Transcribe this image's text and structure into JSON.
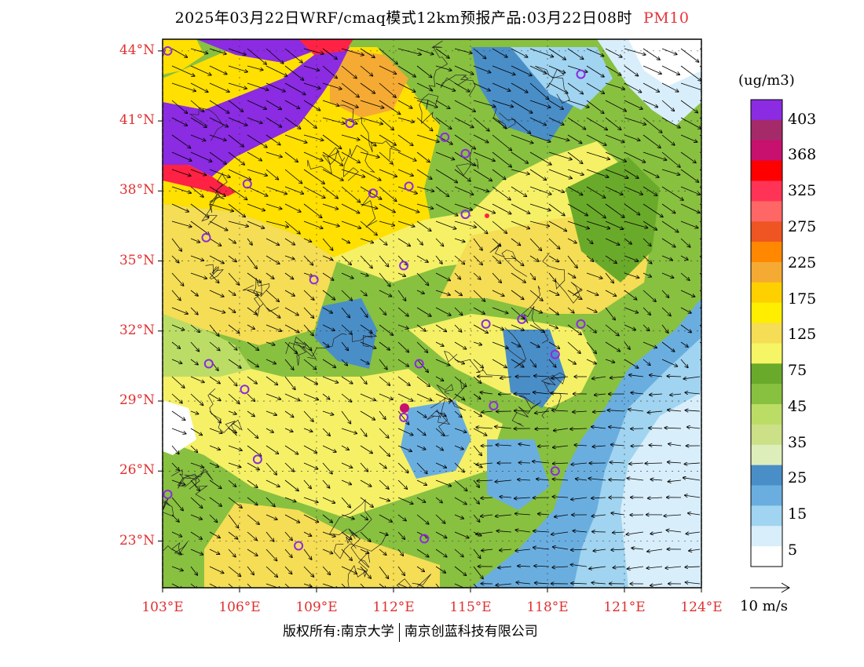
{
  "title": {
    "main": "2025年03月22日WRF/cmaq模式12km预报产品:03月22日08时",
    "variable": "PM10"
  },
  "axes": {
    "lat_labels": [
      "44°N",
      "41°N",
      "38°N",
      "35°N",
      "32°N",
      "29°N",
      "26°N",
      "23°N"
    ],
    "lon_labels": [
      "103°E",
      "106°E",
      "109°E",
      "112°E",
      "115°E",
      "118°E",
      "121°E",
      "124°E"
    ],
    "lat_values": [
      44,
      41,
      38,
      35,
      32,
      29,
      26,
      23
    ],
    "lon_values": [
      103,
      106,
      109,
      112,
      115,
      118,
      121,
      124
    ],
    "lat_range": [
      21,
      44.5
    ],
    "lon_range": [
      103,
      124
    ]
  },
  "colorbar": {
    "unit": "(ug/m3)",
    "labels": [
      "403",
      "368",
      "325",
      "275",
      "225",
      "175",
      "125",
      "75",
      "45",
      "35",
      "25",
      "15",
      "5"
    ],
    "colors": [
      "#8b2be2",
      "#a52a6a",
      "#c8106e",
      "#ff0000",
      "#ff3355",
      "#ff6666",
      "#ee5522",
      "#ff8800",
      "#f5aa33",
      "#ffd000",
      "#ffee00",
      "#f5dd55",
      "#f5f566",
      "#6aaa2a",
      "#88c040",
      "#bbdd66",
      "#cce088",
      "#ddeebb",
      "#4a8ec8",
      "#6aaee0",
      "#a0d4f0",
      "#d8eefa",
      "#ffffff"
    ]
  },
  "wind_reference": {
    "label": "10 m/s"
  },
  "credits": {
    "left": "版权所有:南京大学",
    "right": "南京创蓝科技有限公司"
  },
  "map_colors": {
    "purple": "#8b2be2",
    "red": "#ff2244",
    "orange": "#ff8800",
    "yellow": "#ffe000",
    "light_yellow": "#f5f066",
    "dark_green": "#6aaa2a",
    "green": "#88c040",
    "light_green": "#bbdd66",
    "blue": "#4a8ec8",
    "light_blue": "#a0d4f0",
    "pale_blue": "#d8eefa"
  },
  "stations": [
    [
      103.2,
      44.0
    ],
    [
      119.3,
      43.0
    ],
    [
      110.3,
      40.9
    ],
    [
      114.0,
      40.3
    ],
    [
      114.8,
      39.6
    ],
    [
      106.3,
      38.3
    ],
    [
      111.2,
      37.9
    ],
    [
      112.6,
      38.2
    ],
    [
      114.8,
      37.0
    ],
    [
      104.7,
      36.0
    ],
    [
      112.4,
      34.8
    ],
    [
      108.9,
      34.2
    ],
    [
      115.6,
      32.3
    ],
    [
      117.0,
      32.5
    ],
    [
      119.3,
      32.3
    ],
    [
      118.3,
      31.0
    ],
    [
      104.8,
      30.6
    ],
    [
      113.0,
      30.6
    ],
    [
      106.2,
      29.5
    ],
    [
      112.4,
      28.3
    ],
    [
      115.9,
      28.8
    ],
    [
      106.7,
      26.5
    ],
    [
      118.3,
      26.0
    ],
    [
      103.2,
      25.0
    ],
    [
      108.3,
      22.8
    ],
    [
      113.2,
      23.1
    ]
  ]
}
